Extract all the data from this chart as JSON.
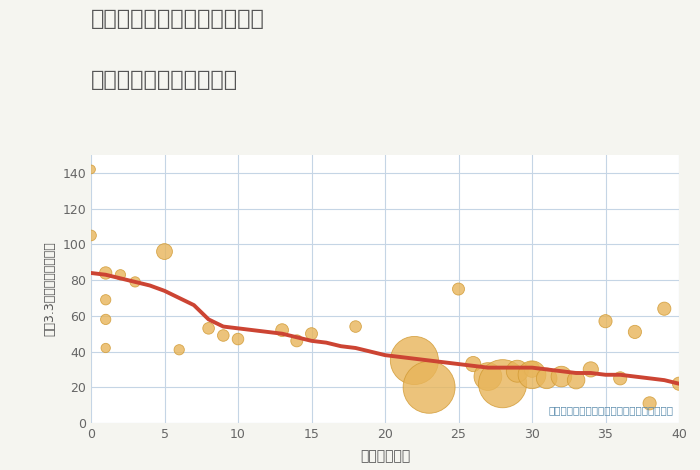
{
  "title_line1": "兵庫県姫路市新在家中の町の",
  "title_line2": "築年数別中古戸建て価格",
  "xlabel": "築年数（年）",
  "ylabel": "坪（3.3㎡）単価（万円）",
  "bg_color": "#f5f5f0",
  "plot_bg_color": "#ffffff",
  "grid_color": "#c5d5e5",
  "title_color": "#555555",
  "annotation_text": "円の大きさは、取引のあった物件面積を示す",
  "annotation_color": "#5588aa",
  "scatter_color": "#e8b55a",
  "scatter_edge_color": "#d09830",
  "line_color": "#cc4433",
  "xlim": [
    0,
    40
  ],
  "ylim": [
    0,
    150
  ],
  "xticks": [
    0,
    5,
    10,
    15,
    20,
    25,
    30,
    35,
    40
  ],
  "yticks": [
    0,
    20,
    40,
    60,
    80,
    100,
    120,
    140
  ],
  "scatter_x": [
    0,
    0,
    1,
    1,
    1,
    1,
    2,
    3,
    5,
    6,
    8,
    9,
    10,
    13,
    14,
    15,
    18,
    22,
    23,
    25,
    26,
    27,
    28,
    29,
    30,
    30,
    31,
    32,
    33,
    34,
    35,
    36,
    37,
    38,
    39,
    40
  ],
  "scatter_y": [
    142,
    105,
    84,
    69,
    58,
    42,
    83,
    79,
    96,
    41,
    53,
    49,
    47,
    52,
    46,
    50,
    54,
    35,
    20,
    75,
    33,
    26,
    22,
    29,
    30,
    27,
    25,
    26,
    24,
    30,
    57,
    25,
    51,
    11,
    64,
    22
  ],
  "scatter_size": [
    40,
    60,
    80,
    55,
    55,
    45,
    55,
    55,
    130,
    55,
    70,
    70,
    70,
    85,
    75,
    75,
    70,
    1200,
    1400,
    75,
    120,
    400,
    1200,
    250,
    130,
    400,
    220,
    220,
    160,
    120,
    90,
    90,
    90,
    90,
    90,
    90
  ],
  "line_x": [
    0,
    1,
    2,
    3,
    4,
    5,
    6,
    7,
    8,
    9,
    10,
    11,
    12,
    13,
    14,
    15,
    16,
    17,
    18,
    19,
    20,
    21,
    22,
    23,
    24,
    25,
    26,
    27,
    28,
    29,
    30,
    31,
    32,
    33,
    34,
    35,
    36,
    37,
    38,
    39,
    40
  ],
  "line_y": [
    84,
    83,
    81,
    79,
    77,
    74,
    70,
    66,
    58,
    54,
    53,
    52,
    51,
    50,
    48,
    46,
    45,
    43,
    42,
    40,
    38,
    37,
    36,
    35,
    34,
    33,
    32,
    31,
    31,
    31,
    31,
    30,
    29,
    28,
    28,
    27,
    27,
    26,
    25,
    24,
    22
  ]
}
